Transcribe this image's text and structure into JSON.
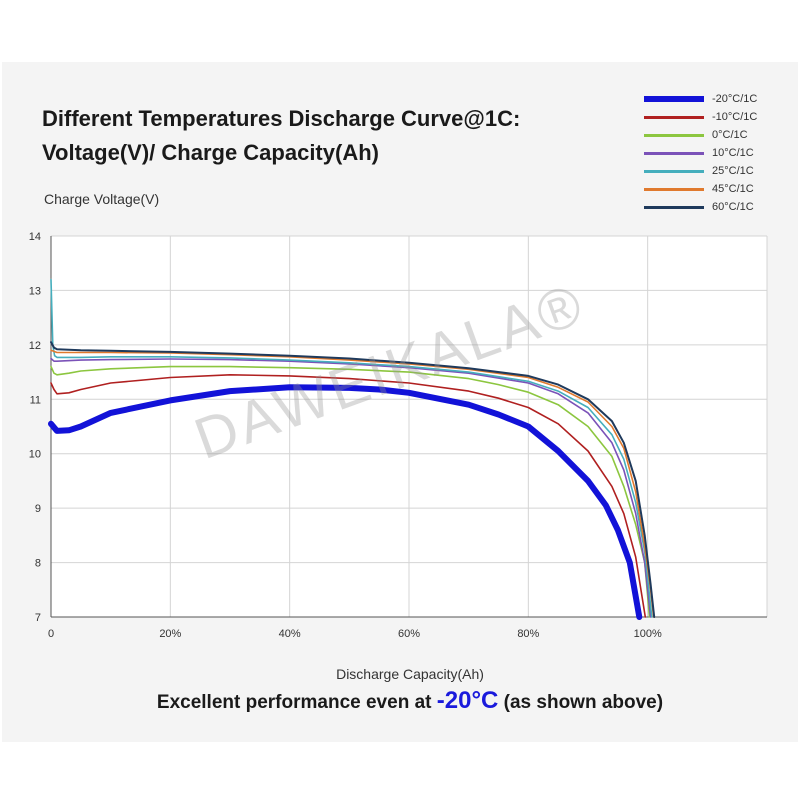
{
  "title_line1": "Different Temperatures Discharge Curve@1C:",
  "title_line2": "Voltage(V)/ Charge Capacity(Ah)",
  "watermark": "DAWEIKALA®",
  "caption": {
    "pre": "Excellent performance even at ",
    "highlight": "-20°C",
    "post": " (as shown above)"
  },
  "chart_data": {
    "type": "line",
    "xlabel": "Discharge Capacity(Ah)",
    "ylabel": "Charge Voltage(V)",
    "xlim": [
      0,
      120
    ],
    "ylim": [
      7,
      14
    ],
    "xticks": [
      {
        "v": 0,
        "label": "0"
      },
      {
        "v": 20,
        "label": "20%"
      },
      {
        "v": 40,
        "label": "40%"
      },
      {
        "v": 60,
        "label": "60%"
      },
      {
        "v": 80,
        "label": "80%"
      },
      {
        "v": 100,
        "label": "100%"
      }
    ],
    "yticks": [
      7,
      8,
      9,
      10,
      11,
      12,
      13,
      14
    ],
    "grid": true,
    "legend_position": "top-right",
    "series": [
      {
        "name": "-20°C/1C",
        "color": "#1212d8",
        "width": 6,
        "x": [
          0,
          1,
          3,
          5,
          10,
          20,
          30,
          40,
          50,
          55,
          60,
          70,
          75,
          80,
          85,
          90,
          93,
          95,
          97,
          98.6
        ],
        "y": [
          10.55,
          10.42,
          10.43,
          10.5,
          10.75,
          10.98,
          11.15,
          11.22,
          11.21,
          11.18,
          11.12,
          10.9,
          10.72,
          10.5,
          10.05,
          9.5,
          9.05,
          8.6,
          8.0,
          7.0
        ]
      },
      {
        "name": "-10°C/1C",
        "color": "#b02020",
        "width": 1.6,
        "x": [
          0,
          0.5,
          1,
          3,
          5,
          10,
          20,
          30,
          40,
          50,
          60,
          70,
          75,
          80,
          85,
          90,
          94,
          96,
          98,
          99.6
        ],
        "y": [
          11.3,
          11.18,
          11.1,
          11.12,
          11.18,
          11.3,
          11.4,
          11.45,
          11.43,
          11.38,
          11.3,
          11.15,
          11.02,
          10.85,
          10.55,
          10.05,
          9.4,
          8.9,
          8.1,
          7.0
        ]
      },
      {
        "name": "0°C/1C",
        "color": "#8cc63f",
        "width": 1.6,
        "x": [
          0,
          0.5,
          1,
          3,
          5,
          10,
          20,
          30,
          40,
          50,
          60,
          70,
          75,
          80,
          85,
          90,
          94,
          96,
          98,
          99.5,
          100.3
        ],
        "y": [
          11.6,
          11.48,
          11.45,
          11.48,
          11.52,
          11.56,
          11.6,
          11.6,
          11.58,
          11.55,
          11.5,
          11.38,
          11.27,
          11.13,
          10.9,
          10.5,
          9.95,
          9.4,
          8.7,
          8.0,
          7.0
        ]
      },
      {
        "name": "10°C/1C",
        "color": "#7b52b8",
        "width": 1.6,
        "x": [
          0,
          0.5,
          1,
          5,
          10,
          20,
          30,
          40,
          50,
          60,
          70,
          80,
          85,
          90,
          94,
          96,
          98,
          99.5,
          100.5
        ],
        "y": [
          11.75,
          11.7,
          11.7,
          11.72,
          11.73,
          11.74,
          11.73,
          11.7,
          11.65,
          11.58,
          11.48,
          11.3,
          11.1,
          10.75,
          10.2,
          9.7,
          8.9,
          8.0,
          7.0
        ]
      },
      {
        "name": "25°C/1C",
        "color": "#45aebd",
        "width": 1.6,
        "x": [
          0,
          0.3,
          0.6,
          1,
          5,
          10,
          20,
          30,
          40,
          50,
          60,
          70,
          80,
          85,
          90,
          94,
          96,
          98,
          99.5,
          100.2,
          100.7
        ],
        "y": [
          13.2,
          12.0,
          11.8,
          11.77,
          11.77,
          11.78,
          11.78,
          11.76,
          11.72,
          11.67,
          11.6,
          11.5,
          11.33,
          11.15,
          10.85,
          10.35,
          9.9,
          9.1,
          8.2,
          7.5,
          7.0
        ]
      },
      {
        "name": "45°C/1C",
        "color": "#e07a2e",
        "width": 1.6,
        "x": [
          0,
          0.5,
          1,
          5,
          10,
          20,
          30,
          40,
          50,
          60,
          70,
          80,
          85,
          90,
          94,
          96,
          98,
          99.5,
          100.5,
          101
        ],
        "y": [
          11.9,
          11.88,
          11.86,
          11.86,
          11.86,
          11.85,
          11.82,
          11.78,
          11.72,
          11.65,
          11.55,
          11.4,
          11.22,
          10.95,
          10.5,
          10.1,
          9.3,
          8.3,
          7.5,
          7.0
        ]
      },
      {
        "name": "60°C/1C",
        "color": "#1f3a5c",
        "width": 2,
        "x": [
          0,
          0.5,
          1,
          5,
          10,
          20,
          30,
          40,
          50,
          60,
          70,
          80,
          85,
          90,
          94,
          96,
          98,
          99.5,
          100.5,
          101.1
        ],
        "y": [
          12.05,
          11.95,
          11.92,
          11.9,
          11.89,
          11.87,
          11.84,
          11.8,
          11.75,
          11.67,
          11.57,
          11.43,
          11.27,
          11.0,
          10.6,
          10.2,
          9.5,
          8.5,
          7.6,
          7.0
        ]
      }
    ]
  }
}
